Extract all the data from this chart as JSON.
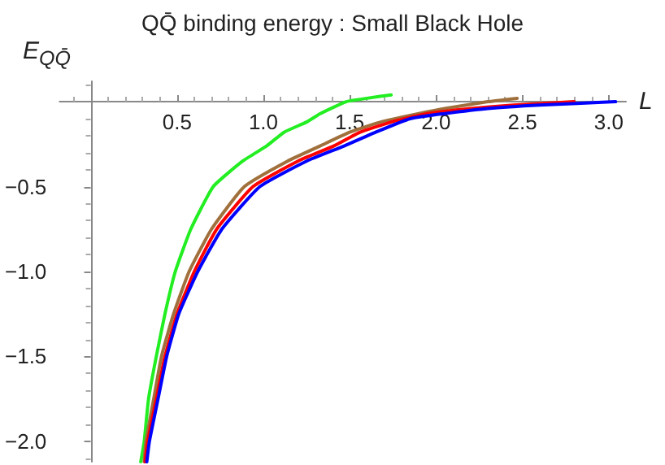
{
  "chart_data": {
    "type": "line",
    "title": "QQ̄ binding energy : Small Black Hole",
    "xlabel": "L",
    "ylabel": "E$_{QQ̄}$",
    "xlim": [
      -0.18,
      3.1
    ],
    "ylim": [
      -2.12,
      0.12
    ],
    "xticks": [
      0.5,
      {
        "value": 1,
        "label": "1.0"
      },
      1.5,
      {
        "value": 2,
        "label": "2.0"
      },
      2.5,
      {
        "value": 3,
        "label": "3.0"
      }
    ],
    "yticks": [
      {
        "value": -0.5,
        "label": "−0.5"
      },
      {
        "value": -1,
        "label": "−1.0"
      },
      {
        "value": -1.5,
        "label": "−1.5"
      },
      {
        "value": -2,
        "label": "−2.0"
      }
    ],
    "grid": false,
    "marker": "none",
    "line_style": "solid",
    "series": [
      {
        "color": "#22ee22",
        "x": [
          0.29,
          0.31,
          0.335,
          0.38,
          0.43,
          0.49,
          0.58,
          0.71,
          0.88,
          1.02,
          1.12,
          1.25,
          1.33,
          1.48,
          1.6,
          1.74
        ],
        "values": [
          -2.12,
          -2.0,
          -1.75,
          -1.5,
          -1.25,
          -1.0,
          -0.75,
          -0.5,
          -0.35,
          -0.26,
          -0.18,
          -0.12,
          -0.07,
          0.0,
          0.02,
          0.04
        ]
      },
      {
        "color": "#a0703c",
        "x": [
          0.31,
          0.32,
          0.365,
          0.41,
          0.48,
          0.57,
          0.7,
          0.89,
          1.14,
          1.33,
          1.5,
          1.68,
          1.9,
          2.05,
          2.3,
          2.47
        ],
        "values": [
          -2.12,
          -2.0,
          -1.75,
          -1.5,
          -1.25,
          -1.0,
          -0.75,
          -0.5,
          -0.35,
          -0.26,
          -0.18,
          -0.12,
          -0.07,
          -0.04,
          0.0,
          0.02
        ]
      },
      {
        "color": "#ff0000",
        "x": [
          0.315,
          0.33,
          0.38,
          0.43,
          0.5,
          0.6,
          0.73,
          0.94,
          1.2,
          1.41,
          1.56,
          1.74,
          1.95,
          2.2,
          2.45,
          2.8
        ],
        "values": [
          -2.12,
          -2.0,
          -1.75,
          -1.5,
          -1.25,
          -1.0,
          -0.75,
          -0.5,
          -0.35,
          -0.26,
          -0.18,
          -0.12,
          -0.07,
          -0.04,
          -0.02,
          0.0
        ]
      },
      {
        "color": "#0000ff",
        "x": [
          0.325,
          0.34,
          0.39,
          0.44,
          0.51,
          0.62,
          0.76,
          0.98,
          1.25,
          1.47,
          1.65,
          1.85,
          2.05,
          2.3,
          2.6,
          3.04
        ],
        "values": [
          -2.12,
          -2.0,
          -1.75,
          -1.5,
          -1.25,
          -1.0,
          -0.75,
          -0.5,
          -0.35,
          -0.26,
          -0.18,
          -0.1,
          -0.07,
          -0.04,
          -0.02,
          0.0
        ]
      }
    ]
  }
}
